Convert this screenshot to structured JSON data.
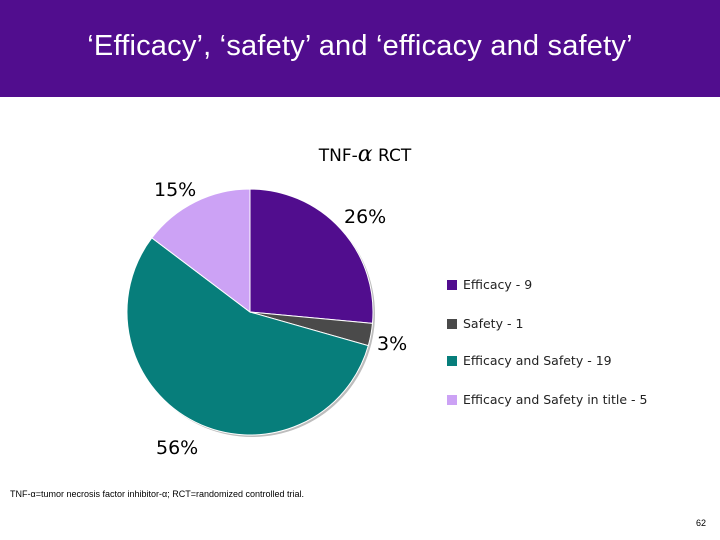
{
  "slide": {
    "title": "‘Efficacy’, ‘safety’ and ‘efficacy and safety’",
    "footnote": "TNF-α=tumor necrosis factor inhibitor-α; RCT=randomized controlled trial.",
    "page_number": "62",
    "header_color": "#510D8E"
  },
  "chart_data": {
    "type": "pie",
    "title_prefix": "TNF-",
    "title_symbol": "α",
    "title_suffix": " RCT",
    "slices": [
      {
        "label": "Efficacy - 9",
        "value": 9,
        "percent_label": "26%",
        "color": "#510D8E"
      },
      {
        "label": "Safety - 1",
        "value": 1,
        "percent_label": "3%",
        "color": "#4A4A4A"
      },
      {
        "label": "Efficacy and Safety - 19",
        "value": 19,
        "percent_label": "56%",
        "color": "#077E7B"
      },
      {
        "label": "Efficacy  and Safety in title - 5",
        "value": 5,
        "percent_label": "15%",
        "color": "#CCA2F5"
      }
    ],
    "legend_position": "right"
  }
}
